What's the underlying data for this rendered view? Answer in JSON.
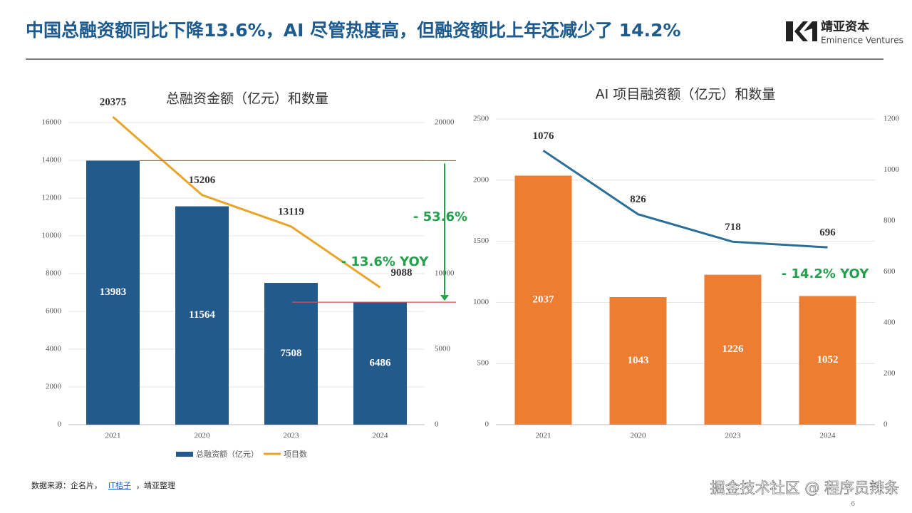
{
  "header": {
    "title": "中国总融资额同比下降13.6%，AI 尽管热度高，但融资额比上年还减少了 14.2%",
    "logo_cn": "靖亚资本",
    "logo_en": "Eminence Ventures"
  },
  "footer": {
    "source": [
      "数据来源：企名片，",
      "IT桔子",
      "，靖亚整理"
    ],
    "page": "6",
    "watermark": "掘金技术社区 @ 程序员辣条"
  },
  "chart_data": [
    {
      "type": "combo",
      "title": "总融资金额（亿元）和数量",
      "categories": [
        "2021",
        "2020",
        "2023",
        "2024"
      ],
      "series": [
        {
          "name": "总融资额（亿元）",
          "type": "bar",
          "color": "#235a8c",
          "values": [
            13983,
            11564,
            7508,
            6486
          ]
        },
        {
          "name": "项目数",
          "type": "line",
          "axis": "y2",
          "color": "#e8a52a",
          "values": [
            20375,
            15206,
            13119,
            9088
          ]
        }
      ],
      "ylim": [
        0,
        16000
      ],
      "yticks": [
        0,
        2000,
        4000,
        6000,
        8000,
        10000,
        12000,
        14000,
        16000
      ],
      "y2lim": [
        0,
        20000
      ],
      "y2ticks": [
        0,
        5000,
        10000,
        20000
      ],
      "grid": true,
      "legend": "bottom",
      "annotations": [
        "- 13.6% YOY",
        "- 53.6%"
      ]
    },
    {
      "type": "combo",
      "title": "AI 项目融资额（亿元）和数量",
      "categories": [
        "2021",
        "2020",
        "2023",
        "2024"
      ],
      "series": [
        {
          "type": "bar",
          "color": "#ed7d31",
          "values": [
            2037,
            1043,
            1226,
            1052
          ]
        },
        {
          "type": "line",
          "axis": "y2",
          "color": "#2a6f97",
          "values": [
            1076,
            826,
            718,
            696
          ]
        }
      ],
      "ylim": [
        0,
        2500
      ],
      "yticks": [
        0,
        500,
        1000,
        1500,
        2000,
        2500
      ],
      "y2lim": [
        0,
        1200
      ],
      "y2ticks": [
        0,
        200,
        400,
        600,
        800,
        1000,
        1200
      ],
      "grid": true,
      "annotations": [
        "- 14.2% YOY"
      ]
    }
  ]
}
